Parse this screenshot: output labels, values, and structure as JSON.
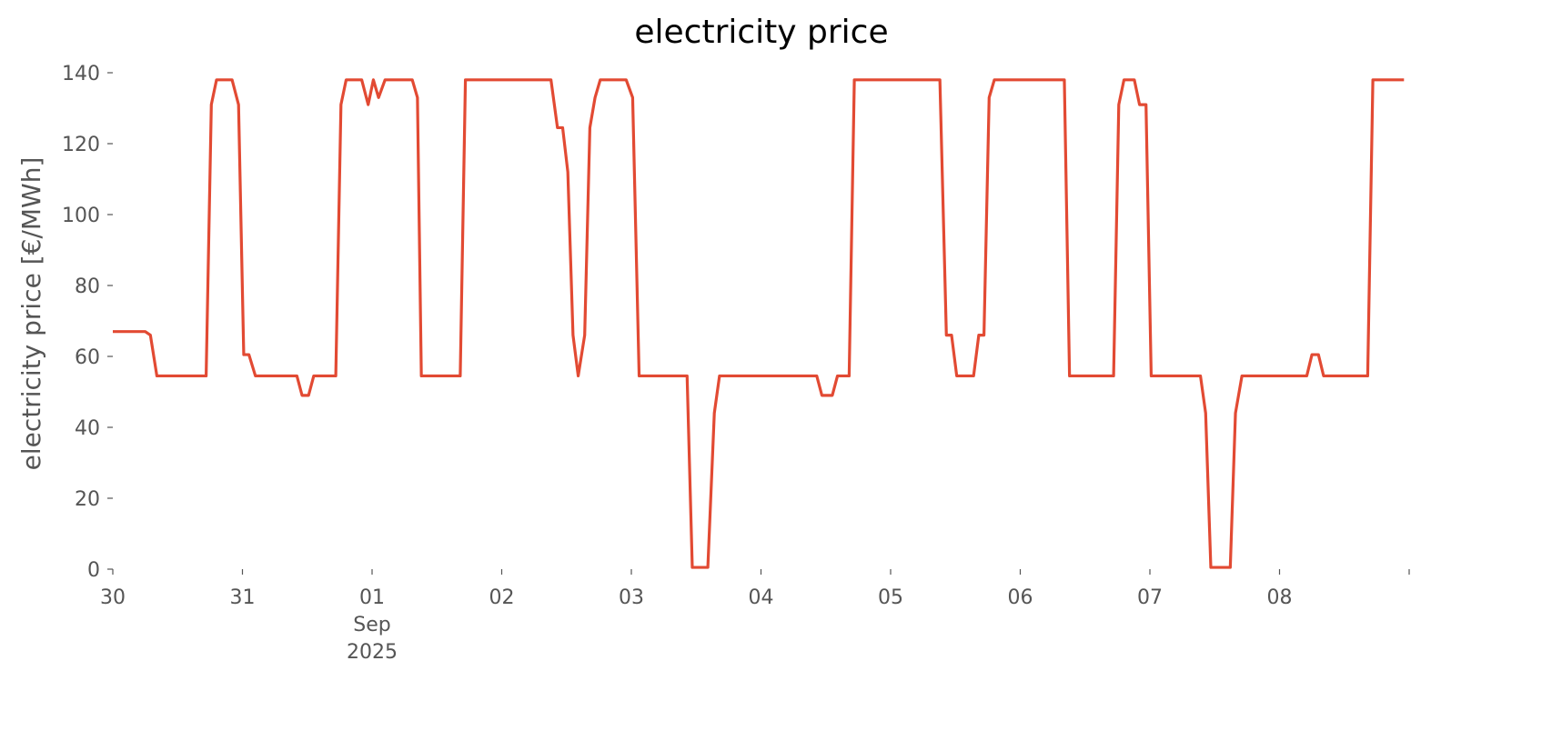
{
  "chart_data": {
    "type": "line",
    "title": "electricity price",
    "ylabel": "electricity price [€/MWh]",
    "x": [
      0,
      0.25,
      0.29,
      0.34,
      0.72,
      0.76,
      0.8,
      0.92,
      0.97,
      1.01,
      1.05,
      1.1,
      1.42,
      1.46,
      1.51,
      1.55,
      1.72,
      1.76,
      1.8,
      1.92,
      1.97,
      2.01,
      2.05,
      2.1,
      2.31,
      2.35,
      2.38,
      2.68,
      2.72,
      3.38,
      3.43,
      3.47,
      3.51,
      3.55,
      3.59,
      3.64,
      3.68,
      3.72,
      3.76,
      3.96,
      4.01,
      4.06,
      4.43,
      4.47,
      4.59,
      4.64,
      4.68,
      5.43,
      5.47,
      5.55,
      5.59,
      5.68,
      5.72,
      6.38,
      6.43,
      6.47,
      6.51,
      6.64,
      6.68,
      6.72,
      6.76,
      6.8,
      7.34,
      7.38,
      7.72,
      7.76,
      7.8,
      7.88,
      7.92,
      7.97,
      8.01,
      8.39,
      8.43,
      8.47,
      8.62,
      8.66,
      8.71,
      9.21,
      9.25,
      9.3,
      9.34,
      9.68,
      9.72,
      9.96
    ],
    "series": [
      {
        "name": "electricity price",
        "color": "#e24a33",
        "values": [
          67,
          67,
          66,
          54.5,
          54.5,
          131,
          138,
          138,
          131,
          60.5,
          60.5,
          54.5,
          54.5,
          49,
          49,
          54.5,
          54.5,
          131,
          138,
          138,
          131,
          138,
          133,
          138,
          138,
          133,
          54.5,
          54.5,
          138,
          138,
          124.5,
          124.5,
          112,
          66,
          54.5,
          66,
          124.5,
          133,
          138,
          138,
          133,
          54.5,
          54.5,
          0.5,
          0.5,
          44,
          54.5,
          54.5,
          49,
          49,
          54.5,
          54.5,
          138,
          138,
          66,
          66,
          54.5,
          54.5,
          66,
          66,
          133,
          138,
          138,
          54.5,
          54.5,
          131,
          138,
          138,
          131,
          131,
          54.5,
          54.5,
          44,
          0.5,
          0.5,
          44,
          54.5,
          54.5,
          60.5,
          60.5,
          54.5,
          54.5,
          138,
          138
        ]
      }
    ],
    "xlim": [
      0,
      10
    ],
    "ylim": [
      0,
      140
    ],
    "xticks": [
      {
        "value": 0,
        "label": "30"
      },
      {
        "value": 1,
        "label": "31"
      },
      {
        "value": 2,
        "label": "01\nSep\n2025"
      },
      {
        "value": 3,
        "label": "02"
      },
      {
        "value": 4,
        "label": "03"
      },
      {
        "value": 5,
        "label": "04"
      },
      {
        "value": 6,
        "label": "05"
      },
      {
        "value": 7,
        "label": "06"
      },
      {
        "value": 8,
        "label": "07"
      },
      {
        "value": 9,
        "label": "08"
      }
    ],
    "yticks": [
      0,
      20,
      40,
      60,
      80,
      100,
      120,
      140
    ],
    "grid": false
  }
}
